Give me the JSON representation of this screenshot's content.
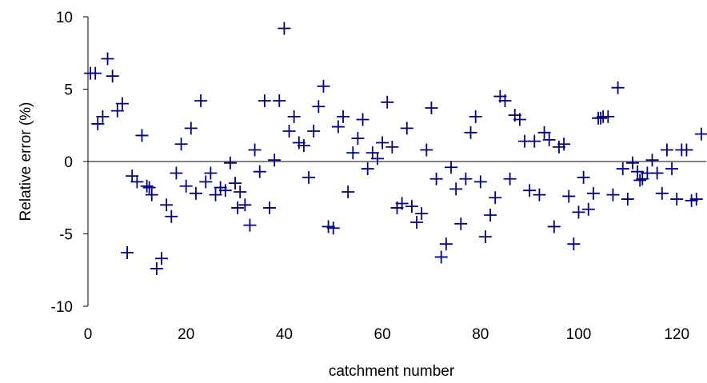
{
  "chart_data": {
    "type": "scatter",
    "marker": "plus",
    "marker_color": "#000080",
    "axis_color": "#000000",
    "xlabel": "catchment number",
    "ylabel": "Relative error (%)",
    "xlim": [
      0,
      126
    ],
    "ylim": [
      -10,
      10
    ],
    "xticks": [
      0,
      20,
      40,
      60,
      80,
      100,
      120
    ],
    "yticks": [
      -10,
      -5,
      0,
      5,
      10
    ],
    "grid": false,
    "legend": "none",
    "series": [
      {
        "points": [
          [
            0.5,
            6.1
          ],
          [
            1.5,
            6.1
          ],
          [
            2,
            2.6
          ],
          [
            3,
            3.1
          ],
          [
            4,
            7.1
          ],
          [
            5,
            5.9
          ],
          [
            6,
            3.5
          ],
          [
            7,
            4.0
          ],
          [
            8,
            -6.3
          ],
          [
            9,
            -1.0
          ],
          [
            10,
            -1.4
          ],
          [
            11,
            1.8
          ],
          [
            12,
            -1.7
          ],
          [
            12.5,
            -1.8
          ],
          [
            13,
            -2.3
          ],
          [
            14,
            -7.4
          ],
          [
            15,
            -6.7
          ],
          [
            16,
            -3.0
          ],
          [
            17,
            -3.8
          ],
          [
            18,
            -0.8
          ],
          [
            19,
            1.2
          ],
          [
            20,
            -1.7
          ],
          [
            21,
            2.3
          ],
          [
            22,
            -2.2
          ],
          [
            23,
            4.2
          ],
          [
            24,
            -1.4
          ],
          [
            25,
            -0.8
          ],
          [
            26,
            -2.3
          ],
          [
            27,
            -1.8
          ],
          [
            28,
            -2.0
          ],
          [
            29,
            -0.1
          ],
          [
            30,
            -1.5
          ],
          [
            30.5,
            -3.2
          ],
          [
            31,
            -2.1
          ],
          [
            32,
            -3.0
          ],
          [
            33,
            -4.4
          ],
          [
            34,
            0.8
          ],
          [
            35,
            -0.7
          ],
          [
            36,
            4.2
          ],
          [
            37,
            -3.2
          ],
          [
            38,
            0.1
          ],
          [
            39,
            4.2
          ],
          [
            40,
            9.2
          ],
          [
            41,
            2.1
          ],
          [
            42,
            3.1
          ],
          [
            43,
            1.3
          ],
          [
            44,
            1.1
          ],
          [
            45,
            -1.1
          ],
          [
            46,
            2.1
          ],
          [
            47,
            3.8
          ],
          [
            48,
            5.2
          ],
          [
            49,
            -4.5
          ],
          [
            50,
            -4.6
          ],
          [
            51,
            2.4
          ],
          [
            52,
            3.1
          ],
          [
            53,
            -2.1
          ],
          [
            54,
            0.6
          ],
          [
            55,
            1.6
          ],
          [
            56,
            2.9
          ],
          [
            57,
            -0.5
          ],
          [
            58,
            0.6
          ],
          [
            59,
            0.2
          ],
          [
            60,
            1.3
          ],
          [
            61,
            4.1
          ],
          [
            62,
            1.0
          ],
          [
            63,
            -3.2
          ],
          [
            64,
            -2.9
          ],
          [
            65,
            2.3
          ],
          [
            66,
            -3.1
          ],
          [
            67,
            -4.2
          ],
          [
            68,
            -3.6
          ],
          [
            69,
            0.8
          ],
          [
            70,
            3.7
          ],
          [
            71,
            -1.2
          ],
          [
            72,
            -6.6
          ],
          [
            73,
            -5.7
          ],
          [
            74,
            -0.4
          ],
          [
            75,
            -1.9
          ],
          [
            76,
            -4.3
          ],
          [
            77,
            -1.2
          ],
          [
            78,
            2.0
          ],
          [
            79,
            3.1
          ],
          [
            80,
            -1.4
          ],
          [
            81,
            -5.2
          ],
          [
            82,
            -3.7
          ],
          [
            83,
            -2.5
          ],
          [
            84,
            4.5
          ],
          [
            85,
            4.2
          ],
          [
            86,
            -1.2
          ],
          [
            87,
            3.2
          ],
          [
            88,
            2.9
          ],
          [
            89,
            1.4
          ],
          [
            90,
            -2.0
          ],
          [
            91,
            1.4
          ],
          [
            92,
            -2.3
          ],
          [
            93,
            2.0
          ],
          [
            94,
            1.5
          ],
          [
            95,
            -4.5
          ],
          [
            96,
            1.0
          ],
          [
            97,
            1.2
          ],
          [
            98,
            -2.4
          ],
          [
            99,
            -5.7
          ],
          [
            100,
            -3.5
          ],
          [
            101,
            -1.1
          ],
          [
            102,
            -3.3
          ],
          [
            103,
            -2.2
          ],
          [
            104,
            3.0
          ],
          [
            104.5,
            3.0
          ],
          [
            105,
            3.1
          ],
          [
            106,
            3.1
          ],
          [
            107,
            -2.3
          ],
          [
            108,
            5.1
          ],
          [
            109,
            -0.5
          ],
          [
            110,
            -2.6
          ],
          [
            111,
            -0.1
          ],
          [
            112,
            -0.7
          ],
          [
            112.5,
            -1.3
          ],
          [
            113,
            -1.2
          ],
          [
            114,
            -0.8
          ],
          [
            115,
            0.1
          ],
          [
            116,
            -0.8
          ],
          [
            117,
            -2.2
          ],
          [
            118,
            0.8
          ],
          [
            119,
            -0.5
          ],
          [
            120,
            -2.6
          ],
          [
            121,
            0.8
          ],
          [
            122,
            0.8
          ],
          [
            123,
            -2.7
          ],
          [
            124,
            -2.6
          ],
          [
            125,
            1.9
          ]
        ]
      }
    ]
  }
}
